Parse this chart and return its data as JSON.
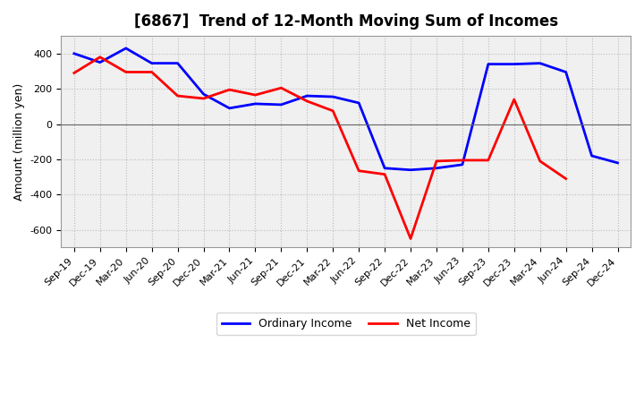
{
  "title": "[6867]  Trend of 12-Month Moving Sum of Incomes",
  "ylabel": "Amount (million yen)",
  "x_labels": [
    "Sep-19",
    "Dec-19",
    "Mar-20",
    "Jun-20",
    "Sep-20",
    "Dec-20",
    "Mar-21",
    "Jun-21",
    "Sep-21",
    "Dec-21",
    "Mar-22",
    "Jun-22",
    "Sep-22",
    "Dec-22",
    "Mar-23",
    "Jun-23",
    "Sep-23",
    "Dec-23",
    "Mar-24",
    "Jun-24",
    "Sep-24",
    "Dec-24"
  ],
  "ordinary_income": [
    400,
    350,
    430,
    345,
    345,
    170,
    90,
    115,
    110,
    160,
    155,
    120,
    -250,
    -260,
    -250,
    -230,
    340,
    340,
    345,
    295,
    -180,
    -220
  ],
  "net_income": [
    290,
    380,
    295,
    295,
    160,
    145,
    195,
    165,
    205,
    130,
    75,
    -265,
    -285,
    -650,
    -210,
    -205,
    -205,
    140,
    -210,
    -310,
    null,
    null
  ],
  "ordinary_income_color": "#0000ff",
  "net_income_color": "#ff0000",
  "background_color": "#ffffff",
  "plot_background": "#f0f0f0",
  "ylim": [
    -700,
    500
  ],
  "yticks": [
    -600,
    -400,
    -200,
    0,
    200,
    400
  ],
  "legend_labels": [
    "Ordinary Income",
    "Net Income"
  ],
  "grid_color": "#bbbbbb",
  "line_width": 2.0,
  "title_fontsize": 12,
  "axis_fontsize": 9,
  "tick_fontsize": 8
}
